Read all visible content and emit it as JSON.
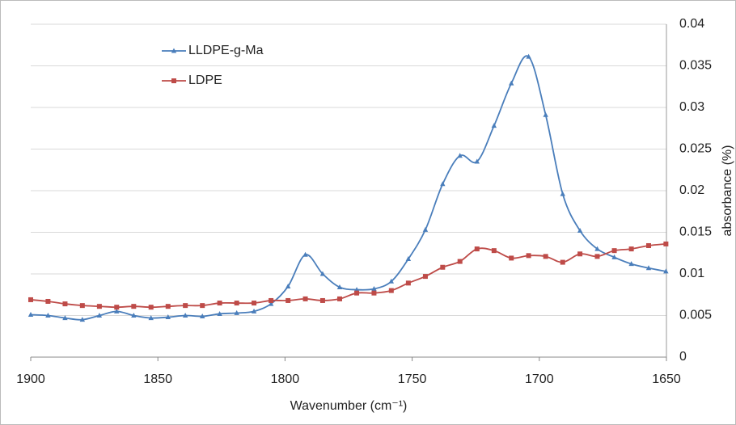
{
  "chart_data": {
    "type": "line",
    "xlabel": "Wavenumber (cm⁻¹)",
    "ylabel": "absorbance (%)",
    "x": [
      1900,
      1893.2,
      1886.5,
      1879.7,
      1873,
      1866.2,
      1859.5,
      1852.7,
      1846,
      1839.2,
      1832.5,
      1825.7,
      1819,
      1812.2,
      1805.5,
      1798.8,
      1792,
      1785.2,
      1778.5,
      1771.8,
      1765,
      1758.2,
      1751.5,
      1744.8,
      1738,
      1731.2,
      1724.5,
      1717.8,
      1711,
      1704.2,
      1697.5,
      1690.8,
      1684,
      1677.2,
      1670.5,
      1663.8,
      1657,
      1650.2
    ],
    "series": [
      {
        "name": "LLDPE-g-Ma",
        "color": "#4a7ebb",
        "marker": "triangle",
        "values": [
          0.0051,
          0.005,
          0.0047,
          0.0045,
          0.005,
          0.0055,
          0.005,
          0.0047,
          0.0048,
          0.005,
          0.0049,
          0.0052,
          0.0053,
          0.0055,
          0.0064,
          0.0085,
          0.0123,
          0.01,
          0.0084,
          0.0081,
          0.0082,
          0.0091,
          0.0118,
          0.0153,
          0.0208,
          0.0242,
          0.0235,
          0.0278,
          0.0329,
          0.0361,
          0.0291,
          0.0196,
          0.0152,
          0.013,
          0.012,
          0.0112,
          0.0107,
          0.0103
        ]
      },
      {
        "name": "LDPE",
        "color": "#be4b48",
        "marker": "square",
        "values": [
          0.0069,
          0.0067,
          0.0064,
          0.0062,
          0.0061,
          0.006,
          0.0061,
          0.006,
          0.0061,
          0.0062,
          0.0062,
          0.0065,
          0.0065,
          0.0065,
          0.0068,
          0.0068,
          0.007,
          0.0068,
          0.007,
          0.0077,
          0.0077,
          0.008,
          0.0089,
          0.0097,
          0.0108,
          0.0115,
          0.013,
          0.0128,
          0.0119,
          0.0122,
          0.0121,
          0.0114,
          0.0124,
          0.0121,
          0.0128,
          0.013,
          0.0134,
          0.0136
        ]
      }
    ],
    "xlim": [
      1900,
      1650
    ],
    "xticks": [
      1900,
      1850,
      1800,
      1750,
      1700,
      1650
    ],
    "ylim": [
      0,
      0.04
    ],
    "yticks": [
      0,
      0.005,
      0.01,
      0.015,
      0.02,
      0.025,
      0.03,
      0.035,
      0.04
    ],
    "y_axis_side": "right",
    "grid": true,
    "legend_position": "top-left"
  }
}
